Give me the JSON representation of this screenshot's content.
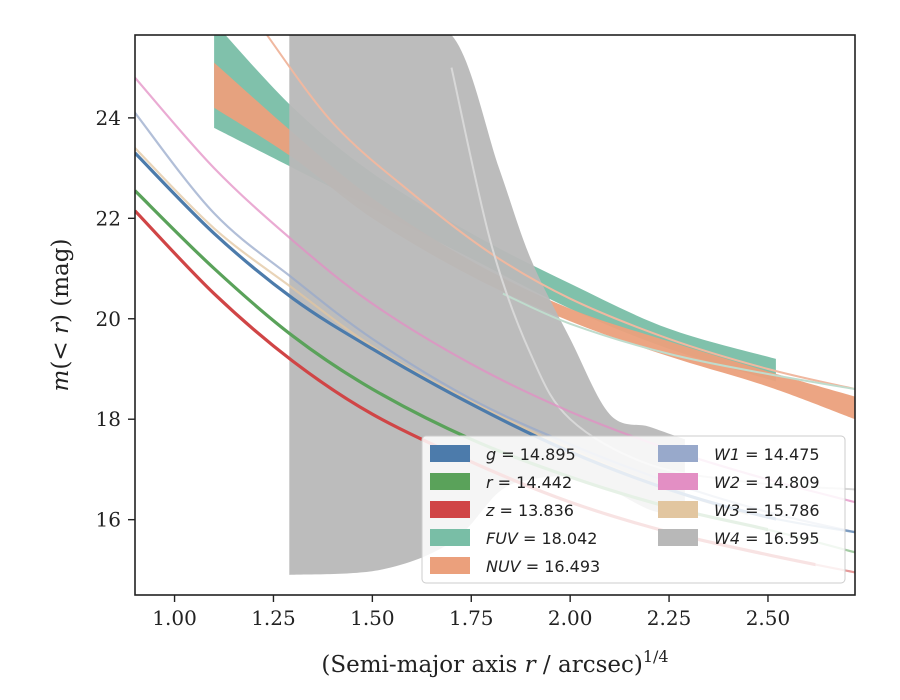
{
  "chart_data": {
    "type": "line",
    "xlabel": "(Semi-major axis r / arcsec)",
    "xlabel_var": "r",
    "xlabel_exp": "1/4",
    "ylabel": "m(< r) (mag)",
    "xlim": [
      0.9,
      2.72
    ],
    "ylim": [
      25.65,
      14.5
    ],
    "x_ticks": [
      1.0,
      1.25,
      1.5,
      1.75,
      2.0,
      2.25,
      2.5
    ],
    "x_tick_labels": [
      "1.00",
      "1.25",
      "1.50",
      "1.75",
      "2.00",
      "2.25",
      "2.50"
    ],
    "y_ticks": [
      16,
      18,
      20,
      22,
      24
    ],
    "y_tick_labels": [
      "16",
      "18",
      "20",
      "22",
      "24"
    ],
    "grid": false,
    "legend_position": "lower-right",
    "series": [
      {
        "name": "g = 14.895",
        "band": "g",
        "mag": "14.895",
        "color": "#4c7bab",
        "kind": "line",
        "x_end_data": 2.52,
        "x": [
          0.9,
          1.1,
          1.3,
          1.5,
          1.75,
          2.0,
          2.25,
          2.5,
          2.72
        ],
        "y": [
          23.3,
          21.7,
          20.4,
          19.4,
          18.3,
          17.35,
          16.6,
          16.05,
          15.75
        ]
      },
      {
        "name": "r = 14.442",
        "band": "r",
        "mag": "14.442",
        "color": "#5aa25a",
        "kind": "line",
        "x_end_data": 2.5,
        "x": [
          0.9,
          1.1,
          1.3,
          1.5,
          1.75,
          2.0,
          2.25,
          2.5,
          2.72
        ],
        "y": [
          22.55,
          21.0,
          19.65,
          18.6,
          17.6,
          16.85,
          16.25,
          15.8,
          15.35
        ]
      },
      {
        "name": "z = 13.836",
        "band": "z",
        "mag": "13.836",
        "color": "#d04546",
        "kind": "line",
        "x_end_data": 2.62,
        "x": [
          0.9,
          1.1,
          1.3,
          1.5,
          1.75,
          2.0,
          2.25,
          2.5,
          2.72
        ],
        "y": [
          22.15,
          20.5,
          19.15,
          18.1,
          17.15,
          16.35,
          15.75,
          15.3,
          14.95
        ]
      },
      {
        "name": "W1 = 14.475",
        "band": "W1",
        "mag": "14.475",
        "color": "#98a9cb",
        "kind": "line",
        "x_end_data": 0.0,
        "x": [
          0.9,
          1.1,
          1.3,
          1.5,
          1.75,
          2.0,
          2.25,
          2.5,
          2.72
        ],
        "y": [
          24.1,
          22.1,
          20.8,
          19.6,
          18.4,
          17.5,
          16.75,
          16.15,
          15.75
        ]
      },
      {
        "name": "W2 = 14.809",
        "band": "W2",
        "mag": "14.809",
        "color": "#e38fc4",
        "kind": "line",
        "x_end_data": 0.0,
        "x": [
          0.9,
          1.1,
          1.3,
          1.5,
          1.75,
          2.0,
          2.25,
          2.5,
          2.72
        ],
        "y": [
          24.8,
          23.0,
          21.55,
          20.3,
          19.1,
          18.15,
          17.4,
          16.8,
          16.35
        ]
      },
      {
        "name": "W3 = 15.786",
        "band": "W3",
        "mag": "15.786",
        "color": "#e2c6a0",
        "kind": "line",
        "x_end_data": 0.0,
        "x": [
          0.9,
          1.1,
          1.3,
          1.5,
          1.75,
          2.0,
          2.25,
          2.45
        ],
        "y": [
          23.4,
          21.8,
          20.6,
          19.45,
          18.35,
          17.4,
          16.6,
          16.1
        ]
      },
      {
        "name": "FUV = 18.042",
        "band": "FUV",
        "mag": "18.042",
        "color": "#79bea6",
        "kind": "band",
        "x": [
          1.1,
          1.3,
          1.5,
          1.75,
          2.0,
          2.25,
          2.52
        ],
        "y_low": [
          25.9,
          24.2,
          22.9,
          21.7,
          20.7,
          19.8,
          19.2
        ],
        "y_high": [
          23.8,
          23.0,
          22.2,
          21.2,
          20.2,
          19.4,
          18.75
        ]
      },
      {
        "name": "NUV = 16.493",
        "band": "NUV",
        "mag": "16.493",
        "color": "#eba07c",
        "kind": "band",
        "x": [
          1.1,
          1.3,
          1.5,
          1.75,
          2.0,
          2.25,
          2.5,
          2.72
        ],
        "y_low": [
          25.1,
          23.7,
          22.4,
          21.15,
          20.2,
          19.55,
          18.95,
          18.45
        ],
        "y_high": [
          24.2,
          23.2,
          22.0,
          20.85,
          19.95,
          19.25,
          18.65,
          18.0
        ]
      },
      {
        "name": "W4 = 16.595",
        "band": "W4",
        "mag": "16.595",
        "color": "#b8b8b8",
        "kind": "band",
        "x": [
          1.29,
          1.52,
          1.7,
          1.82,
          1.9,
          2.0,
          2.1,
          2.2,
          2.29
        ],
        "y_low": [
          25.65,
          25.65,
          25.65,
          23.0,
          21.2,
          19.6,
          18.1,
          17.85,
          17.6
        ],
        "y_high": [
          14.9,
          15.0,
          15.55,
          16.55,
          16.8,
          16.85,
          16.6,
          16.2,
          16.05
        ]
      }
    ],
    "faint_curves": [
      {
        "color": "#f0b8a0",
        "x": [
          1.22,
          1.4,
          1.6,
          1.8,
          2.0,
          2.25,
          2.5,
          2.72
        ],
        "y": [
          25.8,
          23.9,
          22.5,
          21.3,
          20.4,
          19.6,
          19.0,
          18.6
        ],
        "note": "extrapolated"
      },
      {
        "color": "#bfdccd",
        "x": [
          1.83,
          2.0,
          2.25,
          2.5,
          2.72
        ],
        "y": [
          20.5,
          19.9,
          19.3,
          18.9,
          18.6
        ],
        "note": "extrapolated"
      },
      {
        "color": "#d8d8d8",
        "x": [
          1.7,
          1.8,
          1.9,
          2.0,
          2.2,
          2.45,
          2.72
        ],
        "y": [
          25.0,
          21.5,
          19.3,
          18.0,
          17.1,
          16.75,
          16.6
        ],
        "note": "extrapolated"
      }
    ]
  }
}
